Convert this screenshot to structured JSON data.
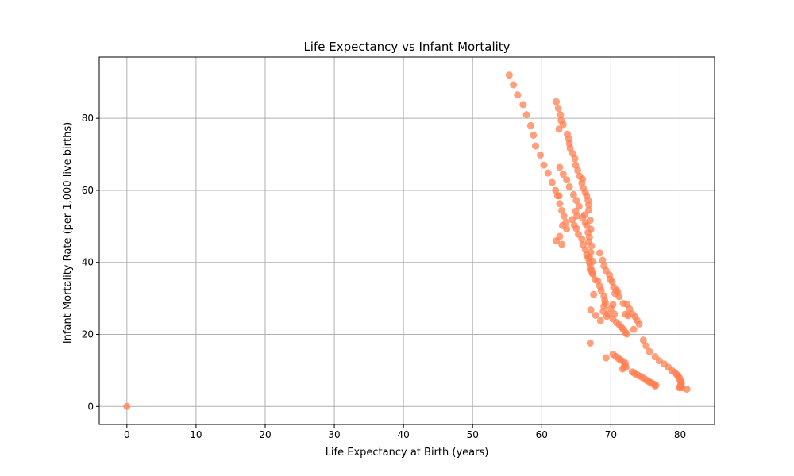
{
  "chart_data": {
    "type": "scatter",
    "title": "Life Expectancy vs Infant Mortality",
    "xlabel": "Life Expectancy at Birth (years)",
    "ylabel": "Infant Mortality Rate (per 1,000 live births)",
    "xlim": [
      -4,
      85
    ],
    "ylim": [
      -5,
      97
    ],
    "xticks": [
      0,
      10,
      20,
      30,
      40,
      50,
      60,
      70,
      80
    ],
    "yticks": [
      0,
      20,
      40,
      60,
      80
    ],
    "grid": true,
    "legend": "none",
    "marker_color": "#FF7F50",
    "marker_opacity": 0.75,
    "series": [
      {
        "points": [
          [
            0,
            0
          ],
          [
            55.3,
            92.0
          ],
          [
            55.9,
            89.3
          ],
          [
            56.5,
            86.5
          ],
          [
            57.3,
            83.8
          ],
          [
            57.8,
            81.0
          ],
          [
            58.4,
            78.0
          ],
          [
            58.8,
            75.3
          ],
          [
            59.1,
            72.3
          ],
          [
            59.8,
            69.8
          ],
          [
            60.3,
            67.0
          ],
          [
            60.9,
            64.8
          ],
          [
            61.5,
            62.2
          ],
          [
            62.0,
            60.0
          ],
          [
            62.3,
            58.5
          ],
          [
            62.6,
            56.3
          ],
          [
            62.9,
            54.4
          ],
          [
            63.2,
            52.9
          ],
          [
            63.5,
            51.2
          ],
          [
            63.0,
            50.2
          ],
          [
            63.6,
            49.3
          ],
          [
            62.1,
            46.0
          ],
          [
            62.6,
            47.2
          ],
          [
            62.9,
            45.0
          ],
          [
            62.5,
            58.5
          ],
          [
            62.1,
            84.6
          ],
          [
            62.4,
            82.8
          ],
          [
            62.7,
            81.0
          ],
          [
            62.8,
            79.4
          ],
          [
            63.1,
            78.3
          ],
          [
            62.5,
            77.0
          ],
          [
            63.7,
            75.6
          ],
          [
            63.9,
            74.3
          ],
          [
            64.0,
            73.0
          ],
          [
            64.1,
            71.7
          ],
          [
            64.5,
            70.2
          ],
          [
            64.8,
            68.8
          ],
          [
            64.9,
            67.0
          ],
          [
            65.2,
            65.5
          ],
          [
            65.5,
            63.9
          ],
          [
            65.9,
            63.1
          ],
          [
            65.8,
            62.0
          ],
          [
            66.0,
            60.6
          ],
          [
            66.3,
            59.4
          ],
          [
            66.5,
            58.5
          ],
          [
            66.7,
            57.3
          ],
          [
            66.8,
            56.0
          ],
          [
            66.8,
            54.5
          ],
          [
            66.2,
            53.2
          ],
          [
            65.9,
            52.5
          ],
          [
            66.3,
            51.0
          ],
          [
            66.5,
            50.2
          ],
          [
            67.0,
            51.7
          ],
          [
            67.1,
            49.2
          ],
          [
            66.7,
            48.3
          ],
          [
            66.9,
            47.0
          ],
          [
            66.8,
            45.7
          ],
          [
            67.2,
            44.6
          ],
          [
            67.1,
            42.8
          ],
          [
            66.9,
            41.5
          ],
          [
            67.4,
            40.3
          ],
          [
            67.0,
            39.1
          ],
          [
            67.2,
            37.9
          ],
          [
            67.4,
            36.8
          ],
          [
            67.7,
            35.2
          ],
          [
            68.1,
            34.8
          ],
          [
            68.4,
            33.4
          ],
          [
            68.6,
            32.2
          ],
          [
            67.5,
            31.1
          ],
          [
            62.6,
            66.4
          ],
          [
            63.1,
            64.5
          ],
          [
            63.6,
            62.9
          ],
          [
            64.0,
            61.0
          ],
          [
            64.6,
            58.8
          ],
          [
            65.0,
            57.2
          ],
          [
            65.4,
            55.6
          ],
          [
            64.9,
            54.2
          ],
          [
            65.1,
            52.9
          ],
          [
            64.4,
            51.9
          ],
          [
            64.7,
            50.3
          ],
          [
            65.0,
            49.4
          ],
          [
            65.3,
            47.8
          ],
          [
            65.8,
            46.5
          ],
          [
            66.0,
            44.9
          ],
          [
            66.3,
            43.5
          ],
          [
            66.5,
            42.1
          ],
          [
            66.7,
            41.2
          ],
          [
            66.9,
            40.0
          ],
          [
            67.0,
            38.0
          ],
          [
            67.3,
            37.0
          ],
          [
            68.4,
            42.6
          ],
          [
            68.8,
            40.6
          ],
          [
            69.0,
            39.0
          ],
          [
            69.3,
            37.7
          ],
          [
            69.8,
            36.5
          ],
          [
            69.9,
            35.3
          ],
          [
            70.2,
            34.6
          ],
          [
            70.4,
            33.1
          ],
          [
            70.8,
            32.3
          ],
          [
            70.6,
            31.4
          ],
          [
            71.0,
            31.8
          ],
          [
            71.2,
            30.5
          ],
          [
            69.0,
            30.7
          ],
          [
            69.1,
            29.5
          ],
          [
            69.2,
            28.6
          ],
          [
            69.0,
            27.8
          ],
          [
            68.9,
            26.4
          ],
          [
            69.4,
            25.0
          ],
          [
            69.6,
            25.6
          ],
          [
            70.0,
            27.2
          ],
          [
            70.3,
            28.3
          ],
          [
            70.5,
            25.7
          ],
          [
            70.3,
            24.3
          ],
          [
            70.8,
            23.3
          ],
          [
            71.2,
            22.7
          ],
          [
            71.5,
            22.0
          ],
          [
            71.8,
            21.4
          ],
          [
            72.1,
            20.6
          ],
          [
            72.3,
            20.1
          ],
          [
            71.8,
            28.6
          ],
          [
            72.3,
            28.4
          ],
          [
            72.7,
            27.1
          ],
          [
            73.1,
            25.7
          ],
          [
            73.5,
            24.9
          ],
          [
            73.8,
            23.9
          ],
          [
            74.1,
            22.9
          ],
          [
            73.3,
            21.4
          ],
          [
            72.1,
            25.6
          ],
          [
            72.5,
            25.2
          ],
          [
            68.5,
            23.8
          ],
          [
            67.1,
            26.8
          ],
          [
            67.8,
            25.3
          ],
          [
            67.0,
            17.6
          ],
          [
            69.3,
            13.5
          ],
          [
            70.3,
            14.5
          ],
          [
            70.7,
            13.9
          ],
          [
            71.1,
            13.3
          ],
          [
            71.4,
            12.9
          ],
          [
            71.8,
            12.5
          ],
          [
            72.1,
            12.0
          ],
          [
            71.9,
            11.0
          ],
          [
            72.2,
            10.9
          ],
          [
            71.7,
            10.4
          ],
          [
            73.1,
            9.6
          ],
          [
            73.4,
            9.2
          ],
          [
            73.8,
            8.8
          ],
          [
            74.2,
            8.4
          ],
          [
            74.6,
            8.0
          ],
          [
            75.0,
            7.5
          ],
          [
            75.3,
            7.1
          ],
          [
            75.6,
            6.8
          ],
          [
            75.9,
            6.5
          ],
          [
            76.2,
            6.2
          ],
          [
            76.5,
            5.9
          ],
          [
            76.4,
            5.7
          ],
          [
            74.7,
            18.4
          ],
          [
            75.1,
            16.8
          ],
          [
            75.6,
            15.2
          ],
          [
            76.4,
            13.8
          ],
          [
            77.0,
            12.7
          ],
          [
            77.7,
            11.8
          ],
          [
            78.3,
            10.9
          ],
          [
            78.8,
            10.0
          ],
          [
            79.2,
            9.5
          ],
          [
            79.5,
            8.9
          ],
          [
            79.7,
            8.5
          ],
          [
            79.9,
            8.0
          ],
          [
            80.0,
            7.4
          ],
          [
            80.1,
            6.9
          ],
          [
            80.2,
            6.4
          ],
          [
            80.1,
            6.0
          ],
          [
            80.0,
            5.4
          ],
          [
            79.9,
            5.2
          ],
          [
            80.3,
            5.2
          ],
          [
            81.0,
            4.8
          ]
        ]
      }
    ]
  }
}
